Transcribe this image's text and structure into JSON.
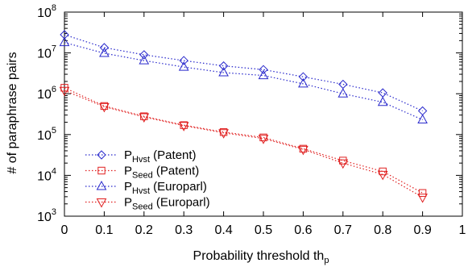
{
  "chart_data": {
    "type": "line",
    "title": "",
    "xlabel": "Probability threshold th",
    "xlabel_sub": "p",
    "ylabel": "# of paraphrase pairs",
    "xlim": [
      0,
      1
    ],
    "ylim": [
      1000,
      100000000
    ],
    "yscale": "log",
    "grid": false,
    "legend_position": "bottom-left",
    "x_ticks": [
      "0",
      "0.1",
      "0.2",
      "0.3",
      "0.4",
      "0.5",
      "0.6",
      "0.7",
      "0.8",
      "0.9",
      "1"
    ],
    "y_ticks": [
      {
        "base": "10",
        "exp": "3"
      },
      {
        "base": "10",
        "exp": "4"
      },
      {
        "base": "10",
        "exp": "5"
      },
      {
        "base": "10",
        "exp": "6"
      },
      {
        "base": "10",
        "exp": "7"
      },
      {
        "base": "10",
        "exp": "8"
      }
    ],
    "x": [
      0,
      0.1,
      0.2,
      0.3,
      0.4,
      0.5,
      0.6,
      0.7,
      0.8,
      0.9
    ],
    "series": [
      {
        "name": "P",
        "name_sub": "Hvst",
        "name_suffix": " (Patent)",
        "color": "#2929cc",
        "dash": "1.5,2.5",
        "marker": "diamond",
        "values": [
          28000000,
          13500000,
          9000000,
          6500000,
          4800000,
          3900000,
          2600000,
          1700000,
          1050000,
          380000
        ]
      },
      {
        "name": "P",
        "name_sub": "Seed",
        "name_suffix": " (Patent)",
        "color": "#e02020",
        "dash": "1.5,2.5",
        "marker": "square",
        "values": [
          1400000,
          500000,
          280000,
          170000,
          115000,
          85000,
          45000,
          23000,
          12500,
          3700
        ]
      },
      {
        "name": "P",
        "name_sub": "Hvst",
        "name_suffix": " (Europarl)",
        "color": "#2929cc",
        "dash": "1.5,2.5",
        "marker": "triangle-up",
        "values": [
          18000000,
          9800000,
          6500000,
          4500000,
          3300000,
          2800000,
          1750000,
          1000000,
          620000,
          230000
        ]
      },
      {
        "name": "P",
        "name_sub": "Seed",
        "name_suffix": " (Europarl)",
        "color": "#e02020",
        "dash": "1.5,2.5",
        "marker": "triangle-down",
        "values": [
          1200000,
          480000,
          270000,
          165000,
          110000,
          80000,
          43000,
          20000,
          10500,
          2900
        ]
      }
    ]
  }
}
